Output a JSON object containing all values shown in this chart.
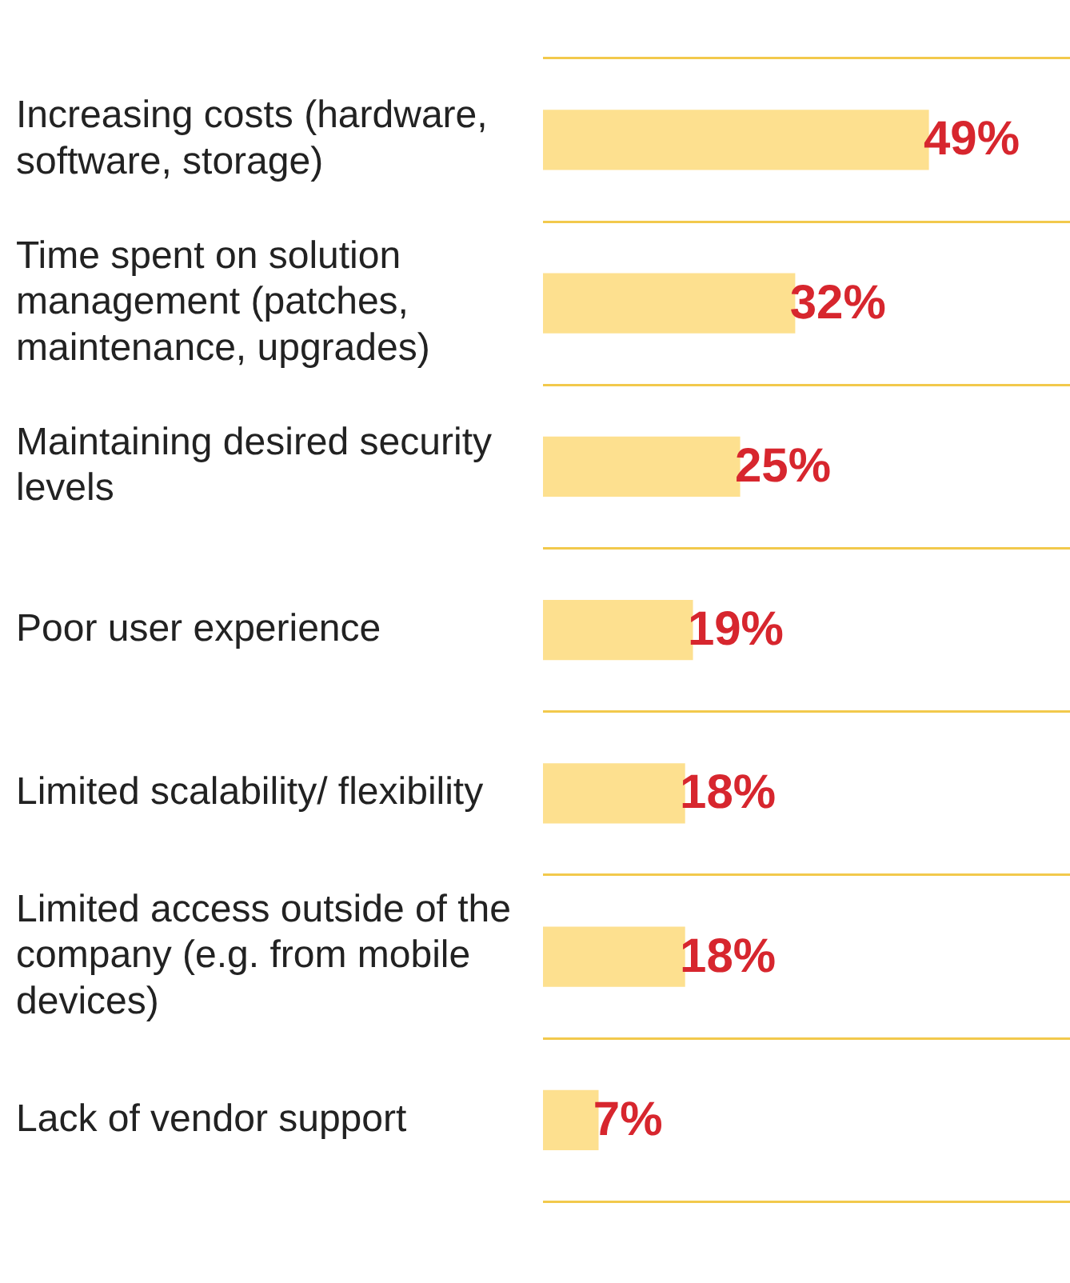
{
  "chart_data": {
    "type": "bar",
    "orientation": "horizontal",
    "categories": [
      "Increasing costs (hardware, software, storage)",
      "Time spent on solution management (patches, maintenance, upgrades)",
      "Maintaining desired security levels",
      "Poor user experience",
      "Limited scalability/ flexibility",
      "Limited access outside of the company (e.g. from mobile devices)",
      "Lack of vendor support"
    ],
    "values": [
      49,
      32,
      25,
      19,
      18,
      18,
      7
    ],
    "value_labels": [
      "49%",
      "32%",
      "25%",
      "19%",
      "18%",
      "18%",
      "7%"
    ],
    "color": "#fde08f",
    "xlim": [
      0,
      67
    ],
    "tick_labels": "y",
    "grid": "y",
    "legend": false
  }
}
